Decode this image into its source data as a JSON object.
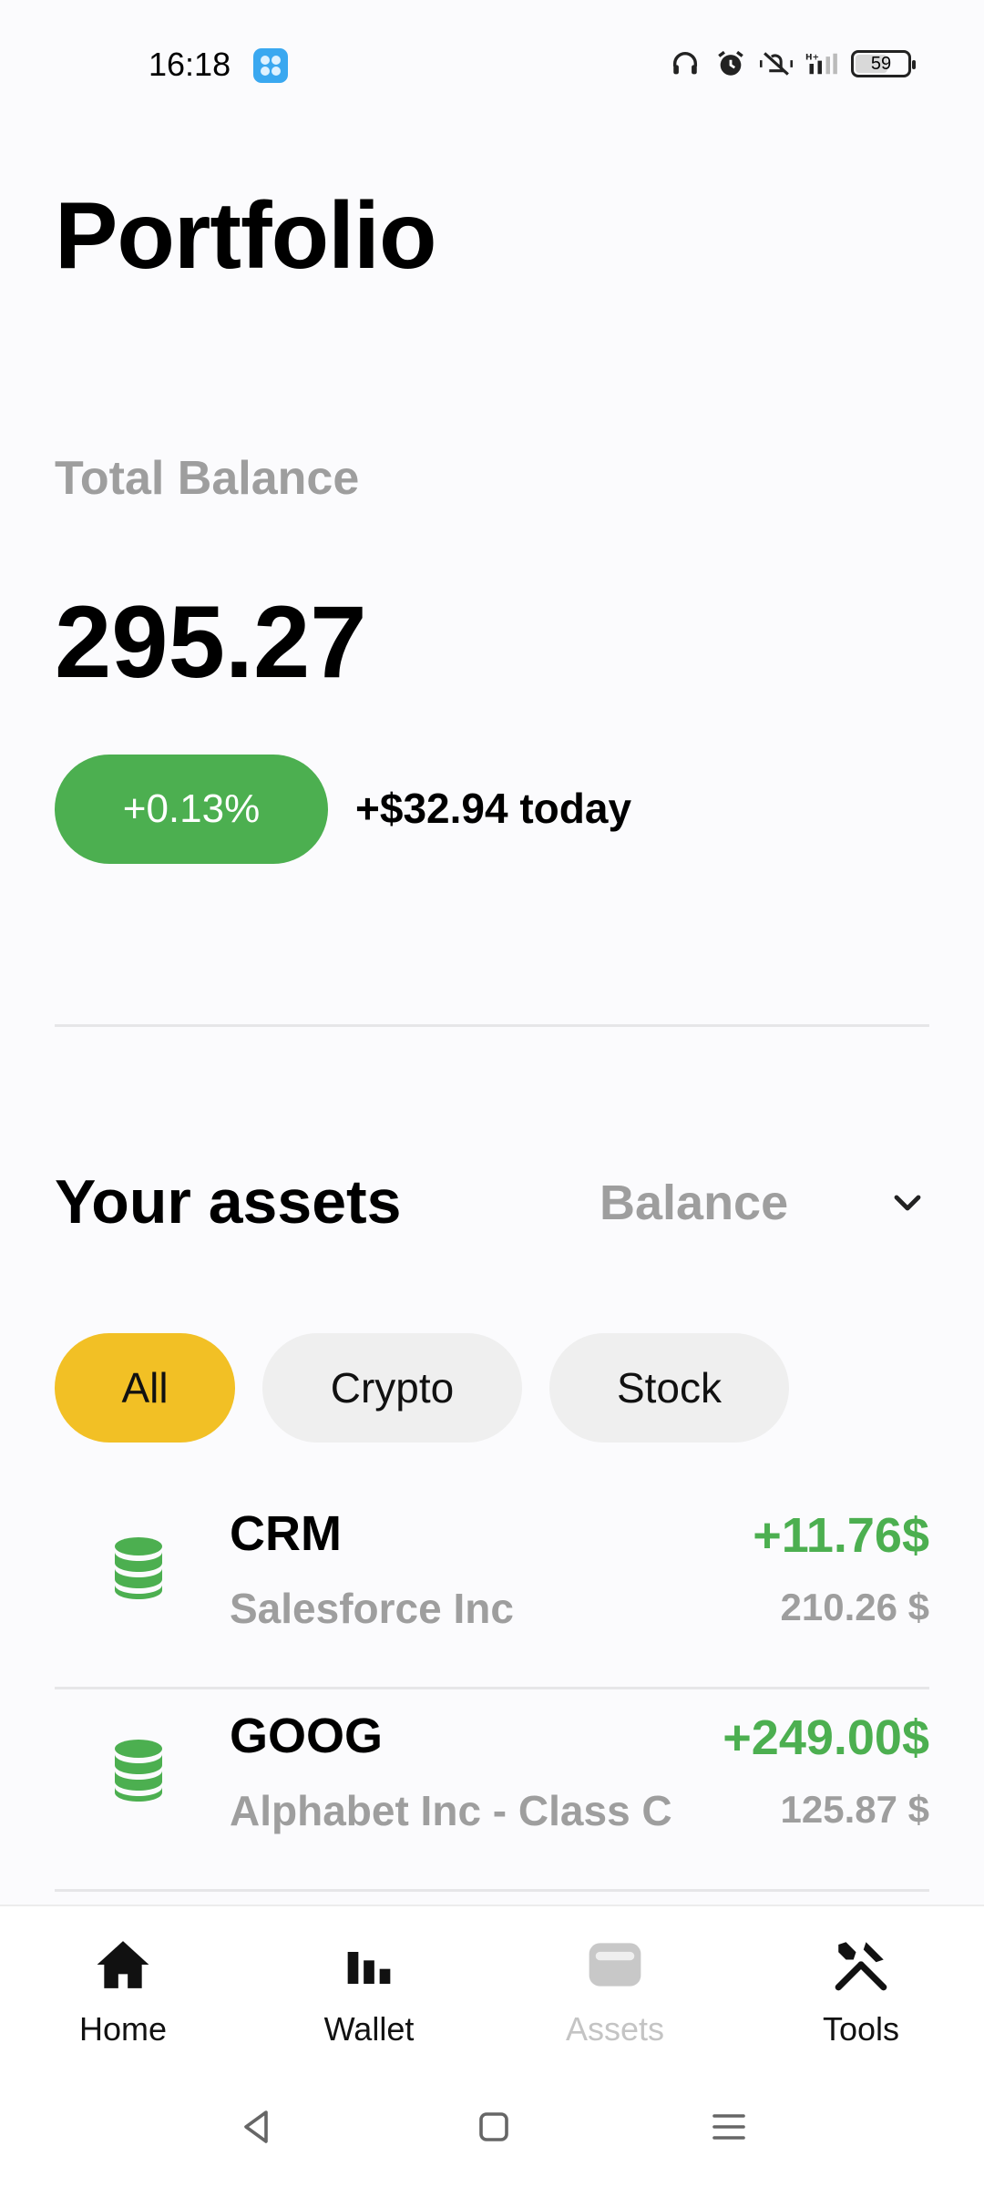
{
  "status_bar": {
    "time": "16:18",
    "battery": "59",
    "icons": [
      "app-notification-icon",
      "headphones-icon",
      "alarm-icon",
      "mute-icon",
      "signal-icon",
      "battery-icon"
    ]
  },
  "header": {
    "title": "Portfolio"
  },
  "summary": {
    "label": "Total Balance",
    "balance": "295.27",
    "change_percent": "+0.13%",
    "change_today": "+$32.94 today"
  },
  "assets": {
    "title": "Your assets",
    "sort_selected": "Balance",
    "filters": [
      "All",
      "Crypto",
      "Stock"
    ],
    "active_filter": "All",
    "items": [
      {
        "symbol": "CRM",
        "name": "Salesforce Inc",
        "gain": "+11.76$",
        "value": "210.26 $",
        "icon": "database-icon"
      },
      {
        "symbol": "GOOG",
        "name": "Alphabet Inc - Class C",
        "gain": "+249.00$",
        "value": "125.87 $",
        "icon": "database-icon"
      }
    ]
  },
  "bottom_nav": {
    "items": [
      {
        "label": "Home",
        "icon": "home-icon"
      },
      {
        "label": "Wallet",
        "icon": "bar-chart-icon"
      },
      {
        "label": "Assets",
        "icon": "wallet-icon",
        "disabled": true
      },
      {
        "label": "Tools",
        "icon": "tools-icon"
      }
    ]
  },
  "colors": {
    "accent_green": "#4caf50",
    "chip_active": "#f2c025",
    "muted_text": "#9e9e9e"
  }
}
